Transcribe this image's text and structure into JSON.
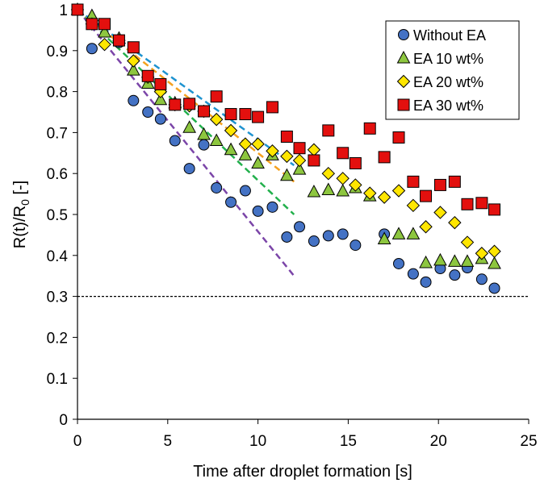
{
  "chart_data": {
    "type": "scatter",
    "title": "",
    "xlabel": "Time after droplet formation [s]",
    "ylabel_main": "R(t)/R",
    "ylabel_sub": "0",
    "ylabel_tail": " [-]",
    "xlim": [
      0,
      25
    ],
    "ylim": [
      0,
      1
    ],
    "xticks": [
      "0",
      "5",
      "10",
      "15",
      "20",
      "25"
    ],
    "yticks": [
      "0",
      "0.1",
      "0.2",
      "0.3",
      "0.4",
      "0.5",
      "0.6",
      "0.7",
      "0.8",
      "0.9",
      "1"
    ],
    "grid": false,
    "legend_position": "top-right",
    "reference_line": {
      "y": 0.3,
      "style": "dashed",
      "color": "#000000"
    },
    "series": [
      {
        "name": "Without EA",
        "marker": "circle",
        "color": "#4472C4",
        "x": [
          0,
          0.8,
          1.5,
          2.3,
          3.1,
          3.9,
          4.6,
          5.4,
          6.2,
          7.0,
          7.7,
          8.5,
          9.3,
          10.0,
          10.8,
          11.6,
          12.3,
          13.1,
          13.9,
          14.7,
          15.4,
          17.0,
          17.8,
          18.6,
          19.3,
          20.1,
          20.9,
          21.6,
          22.4,
          23.1
        ],
        "y": [
          1.0,
          0.905,
          0.965,
          0.92,
          0.778,
          0.75,
          0.733,
          0.68,
          0.612,
          0.67,
          0.565,
          0.53,
          0.558,
          0.508,
          0.518,
          0.445,
          0.47,
          0.435,
          0.448,
          0.452,
          0.425,
          0.452,
          0.38,
          0.355,
          0.335,
          0.368,
          0.352,
          0.37,
          0.342,
          0.32
        ]
      },
      {
        "name": "EA 10 wt%",
        "marker": "triangle",
        "color": "#8DC63F",
        "x": [
          0,
          0.8,
          1.5,
          2.3,
          3.1,
          3.9,
          4.6,
          5.4,
          6.2,
          7.0,
          7.7,
          8.5,
          9.3,
          10.0,
          10.8,
          11.6,
          12.3,
          13.1,
          13.9,
          14.7,
          15.4,
          16.2,
          17.0,
          17.8,
          18.6,
          19.3,
          20.1,
          20.9,
          21.6,
          22.4,
          23.1
        ],
        "y": [
          1.0,
          0.985,
          0.945,
          0.93,
          0.852,
          0.82,
          0.78,
          0.772,
          0.712,
          0.695,
          0.68,
          0.658,
          0.645,
          0.625,
          0.645,
          0.595,
          0.61,
          0.555,
          0.56,
          0.557,
          0.565,
          0.545,
          0.44,
          0.452,
          0.452,
          0.382,
          0.388,
          0.385,
          0.385,
          0.392,
          0.38
        ]
      },
      {
        "name": "EA 20 wt%",
        "marker": "diamond",
        "color": "#FFE600",
        "x": [
          0,
          0.8,
          1.5,
          2.3,
          3.1,
          3.9,
          4.6,
          5.4,
          6.2,
          7.0,
          7.7,
          8.5,
          9.3,
          10.0,
          10.8,
          11.6,
          12.3,
          13.1,
          13.9,
          14.7,
          15.4,
          16.2,
          17.0,
          17.8,
          18.6,
          19.3,
          20.1,
          20.9,
          21.6,
          22.4,
          23.1
        ],
        "y": [
          1.0,
          0.965,
          0.915,
          0.925,
          0.875,
          0.835,
          0.8,
          0.768,
          0.765,
          0.752,
          0.732,
          0.705,
          0.672,
          0.672,
          0.655,
          0.642,
          0.632,
          0.658,
          0.6,
          0.588,
          0.572,
          0.552,
          0.542,
          0.558,
          0.522,
          0.47,
          0.505,
          0.48,
          0.432,
          0.405,
          0.41
        ]
      },
      {
        "name": "EA 30 wt%",
        "marker": "square",
        "color": "#E3100E",
        "x": [
          0,
          0.8,
          1.5,
          2.3,
          3.1,
          3.9,
          4.6,
          5.4,
          6.2,
          7.0,
          7.7,
          8.5,
          9.3,
          10.0,
          10.8,
          11.6,
          12.3,
          13.1,
          13.9,
          14.7,
          15.4,
          16.2,
          17.0,
          17.8,
          18.6,
          19.3,
          20.1,
          20.9,
          21.6,
          22.4,
          23.1
        ],
        "y": [
          1.0,
          0.965,
          0.965,
          0.925,
          0.908,
          0.838,
          0.818,
          0.768,
          0.77,
          0.752,
          0.788,
          0.745,
          0.745,
          0.738,
          0.762,
          0.69,
          0.662,
          0.632,
          0.705,
          0.65,
          0.625,
          0.71,
          0.64,
          0.688,
          0.58,
          0.545,
          0.572,
          0.58,
          0.525,
          0.528,
          0.512
        ]
      }
    ],
    "fit_lines": [
      {
        "color": "#7B45A8",
        "x": [
          0,
          12
        ],
        "y": [
          1.0,
          0.35
        ]
      },
      {
        "color": "#22B04C",
        "x": [
          0,
          12
        ],
        "y": [
          1.0,
          0.5
        ]
      },
      {
        "color": "#F5A11F",
        "x": [
          0,
          12
        ],
        "y": [
          1.0,
          0.58
        ]
      },
      {
        "color": "#1E93D0",
        "x": [
          0,
          12
        ],
        "y": [
          1.0,
          0.62
        ]
      }
    ]
  }
}
